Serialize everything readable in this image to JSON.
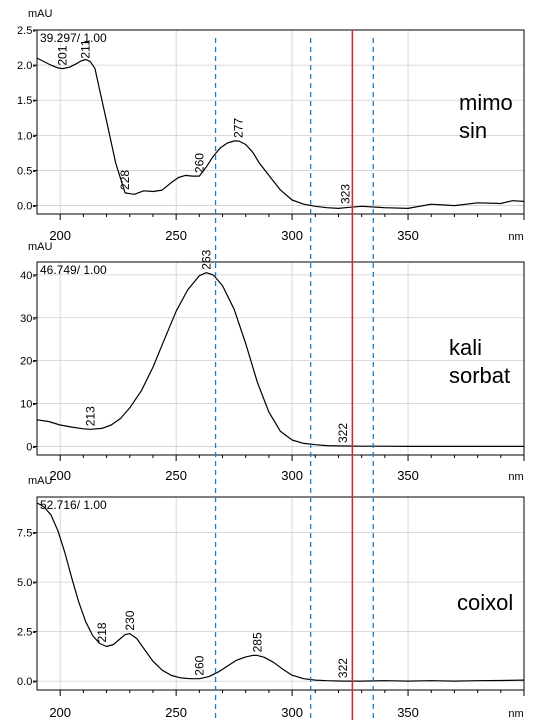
{
  "colors": {
    "spectrum": "#000000",
    "grid": "#cfcfcf",
    "marker_solid": "#d42a2a",
    "marker_dashed": "#1a7fc4",
    "background": "#ffffff"
  },
  "markers": {
    "dashed_x": [
      267,
      308,
      335
    ],
    "solid_x": 326
  },
  "chart_data": [
    {
      "type": "line",
      "name": "mimosin",
      "label_lines": [
        "mimo",
        "sin"
      ],
      "header": "39.297/ 1.00",
      "ylabel": "mAU",
      "x_unit": "nm",
      "xlim": [
        190,
        400
      ],
      "ylim": [
        -0.12,
        2.5
      ],
      "x_ticks": [
        200,
        250,
        300,
        350
      ],
      "x_tick_labels": [
        "200",
        "250",
        "300",
        "350"
      ],
      "y_ticks": [
        0.0,
        0.5,
        1.0,
        1.5,
        2.0,
        2.5
      ],
      "y_tick_labels": [
        "0.0-",
        "0.5-",
        "1.0-",
        "1.5-",
        "2.0-",
        "2.5-"
      ],
      "peak_labels": [
        {
          "x": 201,
          "y": 1.95,
          "text": "201"
        },
        {
          "x": 211,
          "y": 2.05,
          "text": "211"
        },
        {
          "x": 228,
          "y": 0.18,
          "text": "228"
        },
        {
          "x": 260,
          "y": 0.42,
          "text": "260"
        },
        {
          "x": 277,
          "y": 0.92,
          "text": "277"
        },
        {
          "x": 323,
          "y": -0.02,
          "text": "323"
        }
      ],
      "x": [
        190,
        193,
        196,
        199,
        201,
        204,
        207,
        209,
        211,
        213,
        215,
        217,
        220,
        224,
        228,
        232,
        236,
        240,
        244,
        248,
        251,
        254,
        257,
        260,
        263,
        266,
        269,
        272,
        275,
        277,
        280,
        283,
        286,
        290,
        295,
        300,
        305,
        310,
        315,
        320,
        323,
        330,
        340,
        350,
        360,
        370,
        380,
        390,
        395,
        400
      ],
      "y": [
        2.1,
        2.05,
        2.0,
        1.96,
        1.95,
        1.97,
        2.02,
        2.06,
        2.08,
        2.05,
        1.95,
        1.65,
        1.2,
        0.6,
        0.18,
        0.16,
        0.21,
        0.2,
        0.22,
        0.33,
        0.4,
        0.43,
        0.42,
        0.42,
        0.55,
        0.7,
        0.82,
        0.89,
        0.92,
        0.92,
        0.87,
        0.76,
        0.6,
        0.43,
        0.22,
        0.08,
        0.02,
        -0.01,
        -0.03,
        -0.04,
        -0.03,
        -0.01,
        -0.03,
        -0.04,
        0.02,
        0.0,
        0.04,
        0.03,
        0.07,
        0.06
      ]
    },
    {
      "type": "line",
      "name": "kali sorbat",
      "label_lines": [
        "kali",
        "sorbat"
      ],
      "header": "46.749/ 1.00",
      "ylabel": "mAU",
      "x_unit": "nm",
      "xlim": [
        190,
        400
      ],
      "ylim": [
        -2,
        43
      ],
      "x_ticks": [
        200,
        250,
        300,
        350
      ],
      "x_tick_labels": [
        "200",
        "250",
        "300",
        "350"
      ],
      "y_ticks": [
        0,
        10,
        20,
        30,
        40
      ],
      "y_tick_labels": [
        "0-",
        "10-",
        "20-",
        "30-",
        "40-"
      ],
      "peak_labels": [
        {
          "x": 213,
          "y": 4.0,
          "text": "213"
        },
        {
          "x": 263,
          "y": 40.5,
          "text": "263"
        },
        {
          "x": 322,
          "y": 0.1,
          "text": "322"
        }
      ],
      "x": [
        190,
        195,
        200,
        205,
        210,
        213,
        218,
        222,
        226,
        230,
        235,
        240,
        245,
        250,
        255,
        260,
        263,
        266,
        270,
        275,
        280,
        285,
        290,
        295,
        300,
        305,
        310,
        315,
        322,
        330,
        340,
        350,
        360,
        370,
        380,
        390,
        400
      ],
      "y": [
        6.2,
        5.8,
        5.0,
        4.5,
        4.1,
        4.0,
        4.2,
        5.0,
        6.5,
        9.0,
        13.0,
        18.5,
        25.0,
        31.5,
        36.5,
        39.8,
        40.5,
        40.0,
        37.5,
        32.0,
        24.0,
        15.0,
        8.0,
        3.5,
        1.5,
        0.7,
        0.4,
        0.2,
        0.1,
        0.05,
        0.05,
        0.0,
        0.0,
        0.0,
        0.0,
        0.0,
        0.0
      ]
    },
    {
      "type": "line",
      "name": "coixol",
      "label_lines": [
        "coixol"
      ],
      "header": "52.716/ 1.00",
      "ylabel": "mAU",
      "x_unit": "nm",
      "xlim": [
        190,
        400
      ],
      "ylim": [
        -0.45,
        9.3
      ],
      "x_ticks": [
        200,
        250,
        300,
        350
      ],
      "x_tick_labels": [
        "200",
        "250",
        "300",
        "350"
      ],
      "y_ticks": [
        0.0,
        2.5,
        5.0,
        7.5
      ],
      "y_tick_labels": [
        "0.0-",
        "2.5-",
        "5.0-",
        "7.5-"
      ],
      "peak_labels": [
        {
          "x": 218,
          "y": 1.8,
          "text": "218"
        },
        {
          "x": 230,
          "y": 2.4,
          "text": "230"
        },
        {
          "x": 260,
          "y": 0.12,
          "text": "260"
        },
        {
          "x": 285,
          "y": 1.3,
          "text": "285"
        },
        {
          "x": 322,
          "y": 0.0,
          "text": "322"
        }
      ],
      "x": [
        190,
        193,
        196,
        199,
        202,
        205,
        208,
        211,
        214,
        217,
        220,
        223,
        226,
        228,
        230,
        233,
        236,
        240,
        244,
        248,
        252,
        256,
        260,
        264,
        268,
        272,
        276,
        280,
        283,
        285,
        288,
        292,
        296,
        300,
        305,
        310,
        315,
        322,
        330,
        340,
        350,
        360,
        370,
        380,
        390,
        400
      ],
      "y": [
        9.0,
        8.8,
        8.4,
        7.6,
        6.5,
        5.2,
        4.0,
        3.0,
        2.3,
        1.9,
        1.75,
        1.85,
        2.15,
        2.35,
        2.4,
        2.15,
        1.65,
        1.0,
        0.55,
        0.28,
        0.16,
        0.12,
        0.12,
        0.22,
        0.45,
        0.75,
        1.05,
        1.22,
        1.3,
        1.3,
        1.2,
        0.95,
        0.6,
        0.3,
        0.12,
        0.05,
        0.02,
        0.0,
        0.0,
        0.02,
        0.0,
        0.02,
        0.0,
        0.02,
        0.03,
        0.05
      ]
    }
  ]
}
